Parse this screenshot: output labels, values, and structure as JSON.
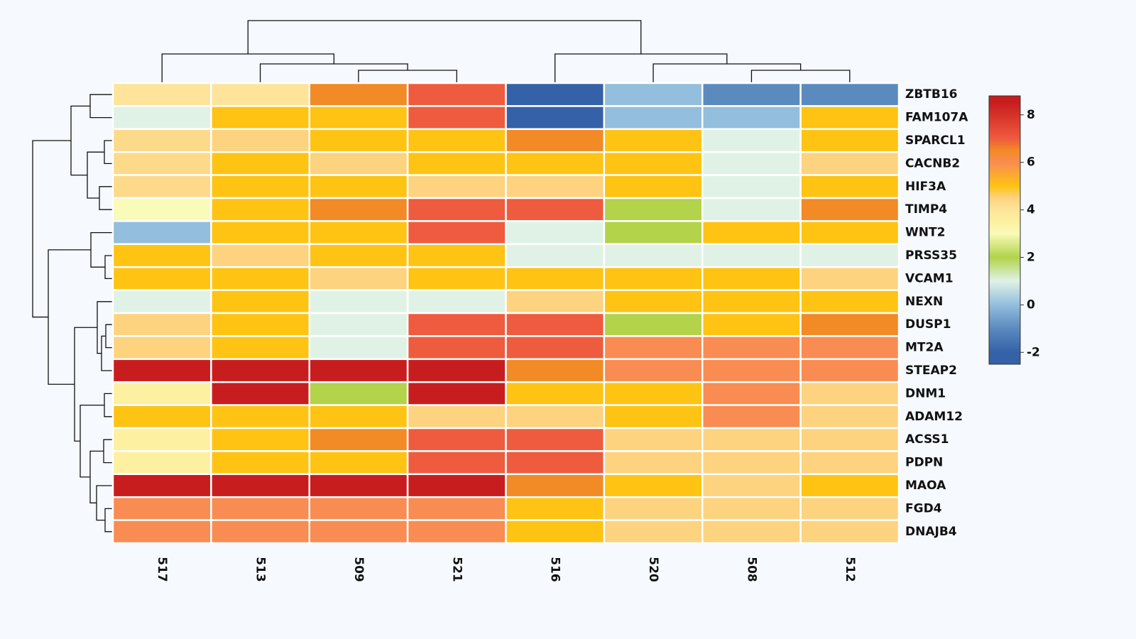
{
  "chart_data": {
    "type": "heatmap",
    "x_categories": [
      "517",
      "513",
      "509",
      "521",
      "516",
      "520",
      "508",
      "512"
    ],
    "y_categories": [
      "ZBTB16",
      "FAM107A",
      "SPARCL1",
      "CACNB2",
      "HIF3A",
      "TIMP4",
      "WNT2",
      "PRSS35",
      "VCAM1",
      "NEXN",
      "DUSP1",
      "MT2A",
      "STEAP2",
      "DNM1",
      "ADAM12",
      "ACSS1",
      "PDPN",
      "MAOA",
      "FGD4",
      "DNAJB4"
    ],
    "values": [
      [
        4,
        4,
        6.5,
        7,
        -2,
        0,
        -1,
        -1
      ],
      [
        1,
        5,
        5,
        7,
        -2,
        0,
        0,
        5
      ],
      [
        4.3,
        4.5,
        5,
        5,
        6.5,
        5,
        1,
        5
      ],
      [
        4.3,
        5,
        4.5,
        5,
        5,
        5,
        1,
        4.5
      ],
      [
        4.3,
        5,
        5,
        4.5,
        4.5,
        5,
        1,
        5
      ],
      [
        3,
        5,
        6.5,
        7,
        7,
        2,
        1,
        6.5
      ],
      [
        0,
        5,
        5,
        7,
        1,
        2,
        5,
        5
      ],
      [
        5,
        4.5,
        5,
        5,
        1,
        1,
        1,
        1
      ],
      [
        5,
        5,
        4.5,
        5,
        5,
        5,
        5,
        4.5
      ],
      [
        1,
        5,
        1,
        1,
        4.5,
        5,
        5,
        5
      ],
      [
        4.5,
        5,
        1,
        7,
        7,
        2,
        5,
        6.5
      ],
      [
        4.5,
        5,
        1,
        7,
        7,
        6,
        6,
        6
      ],
      [
        8.5,
        8.5,
        8.5,
        8.5,
        6.5,
        6,
        6,
        6
      ],
      [
        3.5,
        8.5,
        2,
        8.5,
        5,
        5,
        6,
        4.5
      ],
      [
        5,
        5,
        5,
        4.5,
        4.5,
        5,
        6,
        4.5
      ],
      [
        3.5,
        5,
        6.5,
        7,
        7,
        4.5,
        4.5,
        4.5
      ],
      [
        3.5,
        5,
        5,
        7,
        7,
        4.5,
        4.5,
        4.5
      ],
      [
        8.5,
        8.5,
        8.5,
        8.5,
        6.5,
        5,
        4.5,
        5
      ],
      [
        6,
        6,
        6,
        6,
        5,
        4.5,
        4.5,
        4.5
      ],
      [
        6,
        6,
        6,
        6,
        5,
        4.5,
        4.5,
        4.5
      ]
    ],
    "colorscale": [
      {
        "value": -2,
        "color": "#3561a8"
      },
      {
        "value": -1,
        "color": "#5b8abf"
      },
      {
        "value": 0,
        "color": "#93bedd"
      },
      {
        "value": 1,
        "color": "#e0f2e6"
      },
      {
        "value": 2,
        "color": "#b2d34a"
      },
      {
        "value": 3,
        "color": "#f9fbb8"
      },
      {
        "value": 3.5,
        "color": "#fdf0a0"
      },
      {
        "value": 4,
        "color": "#fde49a"
      },
      {
        "value": 4.5,
        "color": "#fdd380"
      },
      {
        "value": 5,
        "color": "#ffc313"
      },
      {
        "value": 6,
        "color": "#f98c52"
      },
      {
        "value": 6.5,
        "color": "#f28a26"
      },
      {
        "value": 7,
        "color": "#ef5b3e"
      },
      {
        "value": 8.5,
        "color": "#c81d1f"
      }
    ],
    "colorbar_lim": [
      -2.5,
      8.8
    ],
    "colorbar_ticks": [
      -2,
      0,
      2,
      4,
      6,
      8
    ]
  }
}
